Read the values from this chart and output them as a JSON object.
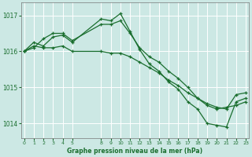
{
  "title": "Graphe pression niveau de la mer (hPa)",
  "background_color": "#cce8e4",
  "plot_bg_color": "#cce8e4",
  "grid_color": "#ffffff",
  "line_color": "#1a6e2e",
  "ylim": [
    1013.6,
    1017.35
  ],
  "yticks": [
    1014,
    1015,
    1016,
    1017
  ],
  "xlim": [
    -0.3,
    23.3
  ],
  "xtick_positions": [
    0,
    1,
    2,
    3,
    4,
    5,
    8,
    9,
    10,
    11,
    12,
    13,
    14,
    15,
    16,
    17,
    18,
    19,
    20,
    21,
    22,
    23
  ],
  "xtick_labels": [
    "0",
    "1",
    "2",
    "3",
    "4",
    "5",
    "8",
    "9",
    "10",
    "11",
    "12",
    "13",
    "14",
    "15",
    "16",
    "17",
    "18",
    "19",
    "20",
    "21",
    "22",
    "23"
  ],
  "series1_x": [
    0,
    1,
    2,
    3,
    4,
    5,
    8,
    9,
    10,
    11,
    12,
    13,
    14,
    15,
    16,
    17,
    18,
    19,
    20,
    21,
    22,
    23
  ],
  "series1_y": [
    1016.0,
    1016.25,
    1016.15,
    1016.4,
    1016.45,
    1016.25,
    1016.9,
    1016.85,
    1017.05,
    1016.55,
    1016.05,
    1015.65,
    1015.45,
    1015.15,
    1014.95,
    1014.6,
    1014.4,
    1014.0,
    1013.95,
    1013.9,
    1014.6,
    1014.7
  ],
  "series2_x": [
    0,
    1,
    2,
    3,
    4,
    5,
    8,
    9,
    10,
    11,
    12,
    13,
    14,
    15,
    16,
    17,
    18,
    19,
    20,
    21,
    22,
    23
  ],
  "series2_y": [
    1016.0,
    1016.15,
    1016.1,
    1016.1,
    1016.15,
    1016.0,
    1016.0,
    1015.95,
    1015.95,
    1015.85,
    1015.7,
    1015.55,
    1015.4,
    1015.2,
    1015.05,
    1014.85,
    1014.7,
    1014.55,
    1014.45,
    1014.4,
    1014.8,
    1014.85
  ],
  "series3_x": [
    0,
    1,
    2,
    3,
    4,
    5,
    8,
    9,
    10,
    11,
    12,
    13,
    14,
    15,
    16,
    17,
    18,
    19,
    20,
    21,
    22,
    23
  ],
  "series3_y": [
    1016.0,
    1016.1,
    1016.35,
    1016.5,
    1016.5,
    1016.3,
    1016.75,
    1016.75,
    1016.85,
    1016.5,
    1016.1,
    1015.85,
    1015.7,
    1015.45,
    1015.25,
    1015.0,
    1014.7,
    1014.5,
    1014.4,
    1014.45,
    1014.5,
    1014.6
  ]
}
